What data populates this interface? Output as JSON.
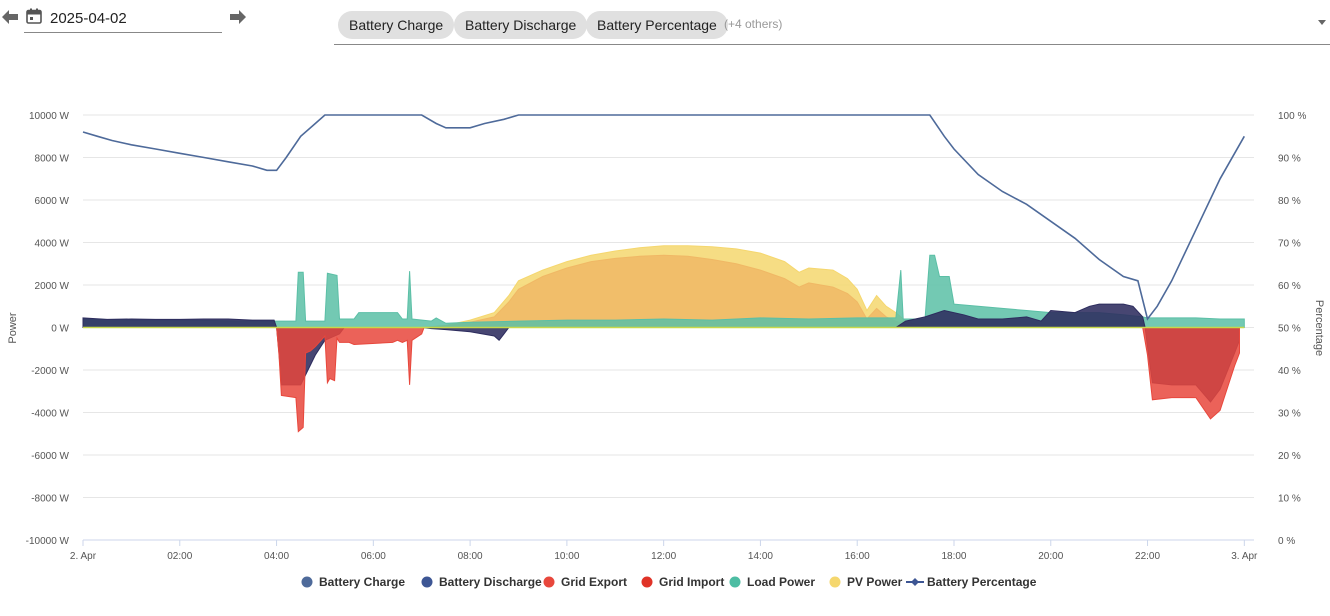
{
  "toolbar": {
    "date": "2025-04-02",
    "prev_icon": "arrow-left-icon",
    "next_icon": "arrow-right-icon",
    "calendar_icon": "calendar-icon",
    "chips": [
      "Battery Charge",
      "Battery Discharge",
      "Battery Percentage"
    ],
    "others": "(+4 others)"
  },
  "chart_data": {
    "type": "area",
    "xlabel": "",
    "ylabel": "Power",
    "y2label": "Percentage",
    "ylim": [
      -10000,
      10000
    ],
    "y2lim": [
      0,
      100
    ],
    "x_unit": "hours",
    "xlim": [
      0,
      24.2
    ],
    "yticks": [
      "10000 W",
      "8000 W",
      "6000 W",
      "4000 W",
      "2000 W",
      "0 W",
      "-2000 W",
      "-4000 W",
      "-6000 W",
      "-8000 W",
      "-10000 W"
    ],
    "y2ticks": [
      "100 %",
      "90 %",
      "80 %",
      "70 %",
      "60 %",
      "50 %",
      "40 %",
      "30 %",
      "20 %",
      "10 %",
      "0 %"
    ],
    "xticks": [
      "2. Apr",
      "02:00",
      "04:00",
      "06:00",
      "08:00",
      "10:00",
      "12:00",
      "14:00",
      "16:00",
      "18:00",
      "20:00",
      "22:00",
      "3. Apr"
    ],
    "grid": true,
    "legend_position": "bottom",
    "series": [
      {
        "name": "PV Power",
        "color": "#f5d76e",
        "points": [
          [
            7.0,
            0
          ],
          [
            7.5,
            100
          ],
          [
            8.0,
            350
          ],
          [
            8.5,
            700
          ],
          [
            8.8,
            1500
          ],
          [
            9.0,
            2200
          ],
          [
            9.5,
            2700
          ],
          [
            10.0,
            3100
          ],
          [
            10.5,
            3400
          ],
          [
            11.0,
            3600
          ],
          [
            11.5,
            3750
          ],
          [
            12.0,
            3850
          ],
          [
            12.5,
            3850
          ],
          [
            13.0,
            3800
          ],
          [
            13.5,
            3700
          ],
          [
            14.0,
            3500
          ],
          [
            14.5,
            3100
          ],
          [
            14.8,
            2600
          ],
          [
            15.0,
            2800
          ],
          [
            15.5,
            2700
          ],
          [
            15.8,
            2300
          ],
          [
            16.0,
            1800
          ],
          [
            16.2,
            800
          ],
          [
            16.4,
            1500
          ],
          [
            16.6,
            1000
          ],
          [
            16.8,
            700
          ],
          [
            17.0,
            300
          ],
          [
            17.3,
            100
          ],
          [
            17.6,
            0
          ]
        ]
      },
      {
        "name": "Battery Charge",
        "color": "#f0b865",
        "points": [
          [
            7.0,
            0
          ],
          [
            7.5,
            80
          ],
          [
            8.0,
            250
          ],
          [
            8.5,
            500
          ],
          [
            8.8,
            1200
          ],
          [
            9.0,
            1800
          ],
          [
            9.5,
            2400
          ],
          [
            10.0,
            2800
          ],
          [
            10.5,
            3100
          ],
          [
            11.0,
            3250
          ],
          [
            11.5,
            3350
          ],
          [
            12.0,
            3400
          ],
          [
            12.5,
            3350
          ],
          [
            13.0,
            3200
          ],
          [
            13.5,
            3000
          ],
          [
            14.0,
            2700
          ],
          [
            14.5,
            2300
          ],
          [
            14.8,
            1900
          ],
          [
            15.0,
            2100
          ],
          [
            15.5,
            1900
          ],
          [
            15.8,
            1600
          ],
          [
            16.0,
            1200
          ],
          [
            16.2,
            400
          ],
          [
            16.4,
            900
          ],
          [
            16.6,
            500
          ],
          [
            16.8,
            300
          ],
          [
            17.0,
            100
          ],
          [
            17.3,
            0
          ]
        ]
      },
      {
        "name": "Load Power",
        "color": "#5bbfa6",
        "points": [
          [
            0.0,
            400
          ],
          [
            1.0,
            350
          ],
          [
            2.0,
            350
          ],
          [
            3.0,
            320
          ],
          [
            3.8,
            300
          ],
          [
            4.4,
            300
          ],
          [
            4.45,
            2600
          ],
          [
            4.55,
            2600
          ],
          [
            4.6,
            300
          ],
          [
            5.0,
            300
          ],
          [
            5.05,
            2550
          ],
          [
            5.25,
            2450
          ],
          [
            5.3,
            400
          ],
          [
            5.6,
            400
          ],
          [
            5.7,
            700
          ],
          [
            6.5,
            700
          ],
          [
            6.6,
            400
          ],
          [
            6.7,
            400
          ],
          [
            6.75,
            2650
          ],
          [
            6.8,
            400
          ],
          [
            7.2,
            300
          ],
          [
            7.3,
            450
          ],
          [
            7.5,
            200
          ],
          [
            8.0,
            250
          ],
          [
            9.0,
            300
          ],
          [
            10.0,
            350
          ],
          [
            11.0,
            350
          ],
          [
            12.0,
            400
          ],
          [
            13.0,
            350
          ],
          [
            14.0,
            450
          ],
          [
            15.0,
            400
          ],
          [
            16.0,
            450
          ],
          [
            16.8,
            450
          ],
          [
            16.9,
            2700
          ],
          [
            16.95,
            400
          ],
          [
            17.4,
            400
          ],
          [
            17.5,
            3400
          ],
          [
            17.6,
            3400
          ],
          [
            17.7,
            2400
          ],
          [
            17.9,
            2400
          ],
          [
            18.0,
            1100
          ],
          [
            18.5,
            1000
          ],
          [
            19.0,
            900
          ],
          [
            19.5,
            800
          ],
          [
            20.0,
            700
          ],
          [
            20.5,
            700
          ],
          [
            21.0,
            700
          ],
          [
            21.5,
            600
          ],
          [
            21.9,
            500
          ],
          [
            22.0,
            450
          ],
          [
            22.5,
            450
          ],
          [
            23.0,
            450
          ],
          [
            23.5,
            400
          ],
          [
            24.0,
            400
          ]
        ]
      },
      {
        "name": "Battery Discharge",
        "color": "#2d2c5e",
        "points": [
          [
            0.0,
            450
          ],
          [
            0.5,
            380
          ],
          [
            1.0,
            400
          ],
          [
            1.5,
            380
          ],
          [
            2.0,
            380
          ],
          [
            2.5,
            400
          ],
          [
            3.0,
            400
          ],
          [
            3.5,
            350
          ],
          [
            3.95,
            350
          ],
          [
            4.0,
            0
          ],
          [
            4.05,
            -1200
          ],
          [
            4.1,
            -2700
          ],
          [
            4.5,
            -2700
          ],
          [
            4.8,
            -1300
          ],
          [
            5.0,
            -600
          ],
          [
            5.3,
            -300
          ],
          [
            5.4,
            0
          ],
          [
            7.0,
            0
          ],
          [
            7.2,
            -50
          ],
          [
            7.5,
            -100
          ],
          [
            8.0,
            -200
          ],
          [
            8.5,
            -400
          ],
          [
            8.6,
            -600
          ],
          [
            8.7,
            -300
          ],
          [
            8.8,
            0
          ],
          [
            16.8,
            0
          ],
          [
            17.0,
            300
          ],
          [
            17.4,
            500
          ],
          [
            17.8,
            800
          ],
          [
            18.2,
            600
          ],
          [
            18.5,
            400
          ],
          [
            19.0,
            400
          ],
          [
            19.5,
            500
          ],
          [
            19.8,
            300
          ],
          [
            20.0,
            800
          ],
          [
            20.5,
            700
          ],
          [
            20.8,
            1000
          ],
          [
            21.0,
            1100
          ],
          [
            21.5,
            1100
          ],
          [
            21.7,
            1000
          ],
          [
            21.9,
            500
          ],
          [
            21.95,
            0
          ],
          [
            22.0,
            -900
          ],
          [
            22.1,
            -2600
          ],
          [
            22.5,
            -2700
          ],
          [
            23.0,
            -2700
          ],
          [
            23.3,
            -3500
          ],
          [
            23.5,
            -2900
          ],
          [
            23.8,
            -1200
          ],
          [
            23.9,
            -600
          ],
          [
            23.9,
            0
          ]
        ]
      },
      {
        "name": "Grid Import",
        "color": "#e8473c",
        "points": [
          [
            4.0,
            0
          ],
          [
            4.05,
            -1300
          ],
          [
            4.1,
            -3200
          ],
          [
            4.4,
            -3300
          ],
          [
            4.45,
            -4900
          ],
          [
            4.55,
            -4700
          ],
          [
            4.6,
            -1200
          ],
          [
            4.7,
            -1100
          ],
          [
            4.8,
            -900
          ],
          [
            5.0,
            -400
          ],
          [
            5.05,
            -2600
          ],
          [
            5.1,
            -2400
          ],
          [
            5.2,
            -2500
          ],
          [
            5.25,
            -500
          ],
          [
            5.3,
            -700
          ],
          [
            5.5,
            -700
          ],
          [
            5.6,
            -800
          ],
          [
            6.4,
            -700
          ],
          [
            6.5,
            -600
          ],
          [
            6.6,
            -700
          ],
          [
            6.7,
            -600
          ],
          [
            6.75,
            -2700
          ],
          [
            6.8,
            -600
          ],
          [
            7.0,
            -300
          ],
          [
            7.05,
            0
          ],
          [
            21.9,
            0
          ],
          [
            22.0,
            -1300
          ],
          [
            22.1,
            -3400
          ],
          [
            22.5,
            -3300
          ],
          [
            23.0,
            -3300
          ],
          [
            23.3,
            -4300
          ],
          [
            23.5,
            -3900
          ],
          [
            23.8,
            -1800
          ],
          [
            23.9,
            -1200
          ],
          [
            23.9,
            0
          ]
        ]
      },
      {
        "name": "Battery Percentage",
        "color": "#4e6a9a",
        "axis": "right",
        "points": [
          [
            0.0,
            96
          ],
          [
            0.3,
            95
          ],
          [
            0.6,
            94
          ],
          [
            1.0,
            93
          ],
          [
            1.5,
            92
          ],
          [
            2.0,
            91
          ],
          [
            2.5,
            90
          ],
          [
            3.0,
            89
          ],
          [
            3.5,
            88
          ],
          [
            3.8,
            87
          ],
          [
            4.0,
            87
          ],
          [
            4.2,
            90
          ],
          [
            4.5,
            95
          ],
          [
            4.8,
            98
          ],
          [
            5.0,
            100
          ],
          [
            7.0,
            100
          ],
          [
            7.3,
            98
          ],
          [
            7.5,
            97
          ],
          [
            8.0,
            97
          ],
          [
            8.3,
            98
          ],
          [
            8.7,
            99
          ],
          [
            9.0,
            100
          ],
          [
            17.5,
            100
          ],
          [
            17.8,
            95
          ],
          [
            18.0,
            92
          ],
          [
            18.5,
            86
          ],
          [
            19.0,
            82
          ],
          [
            19.5,
            79
          ],
          [
            20.0,
            75
          ],
          [
            20.5,
            71
          ],
          [
            21.0,
            66
          ],
          [
            21.5,
            62
          ],
          [
            21.8,
            61
          ],
          [
            22.0,
            52
          ],
          [
            22.2,
            55
          ],
          [
            22.5,
            61
          ],
          [
            23.0,
            73
          ],
          [
            23.5,
            85
          ],
          [
            24.0,
            95
          ]
        ]
      }
    ],
    "legend": [
      {
        "name": "Battery Charge",
        "color": "#4e6a9a",
        "marker": "circle"
      },
      {
        "name": "Battery Discharge",
        "color": "#3d5694",
        "marker": "circle"
      },
      {
        "name": "Grid Export",
        "color": "#e8473c",
        "marker": "circle"
      },
      {
        "name": "Grid Import",
        "color": "#e03327",
        "marker": "circle"
      },
      {
        "name": "Load Power",
        "color": "#4dbda3",
        "marker": "circle"
      },
      {
        "name": "PV Power",
        "color": "#f5d76e",
        "marker": "circle"
      },
      {
        "name": "Battery Percentage",
        "color": "#3d5694",
        "marker": "line-diamond"
      }
    ]
  }
}
